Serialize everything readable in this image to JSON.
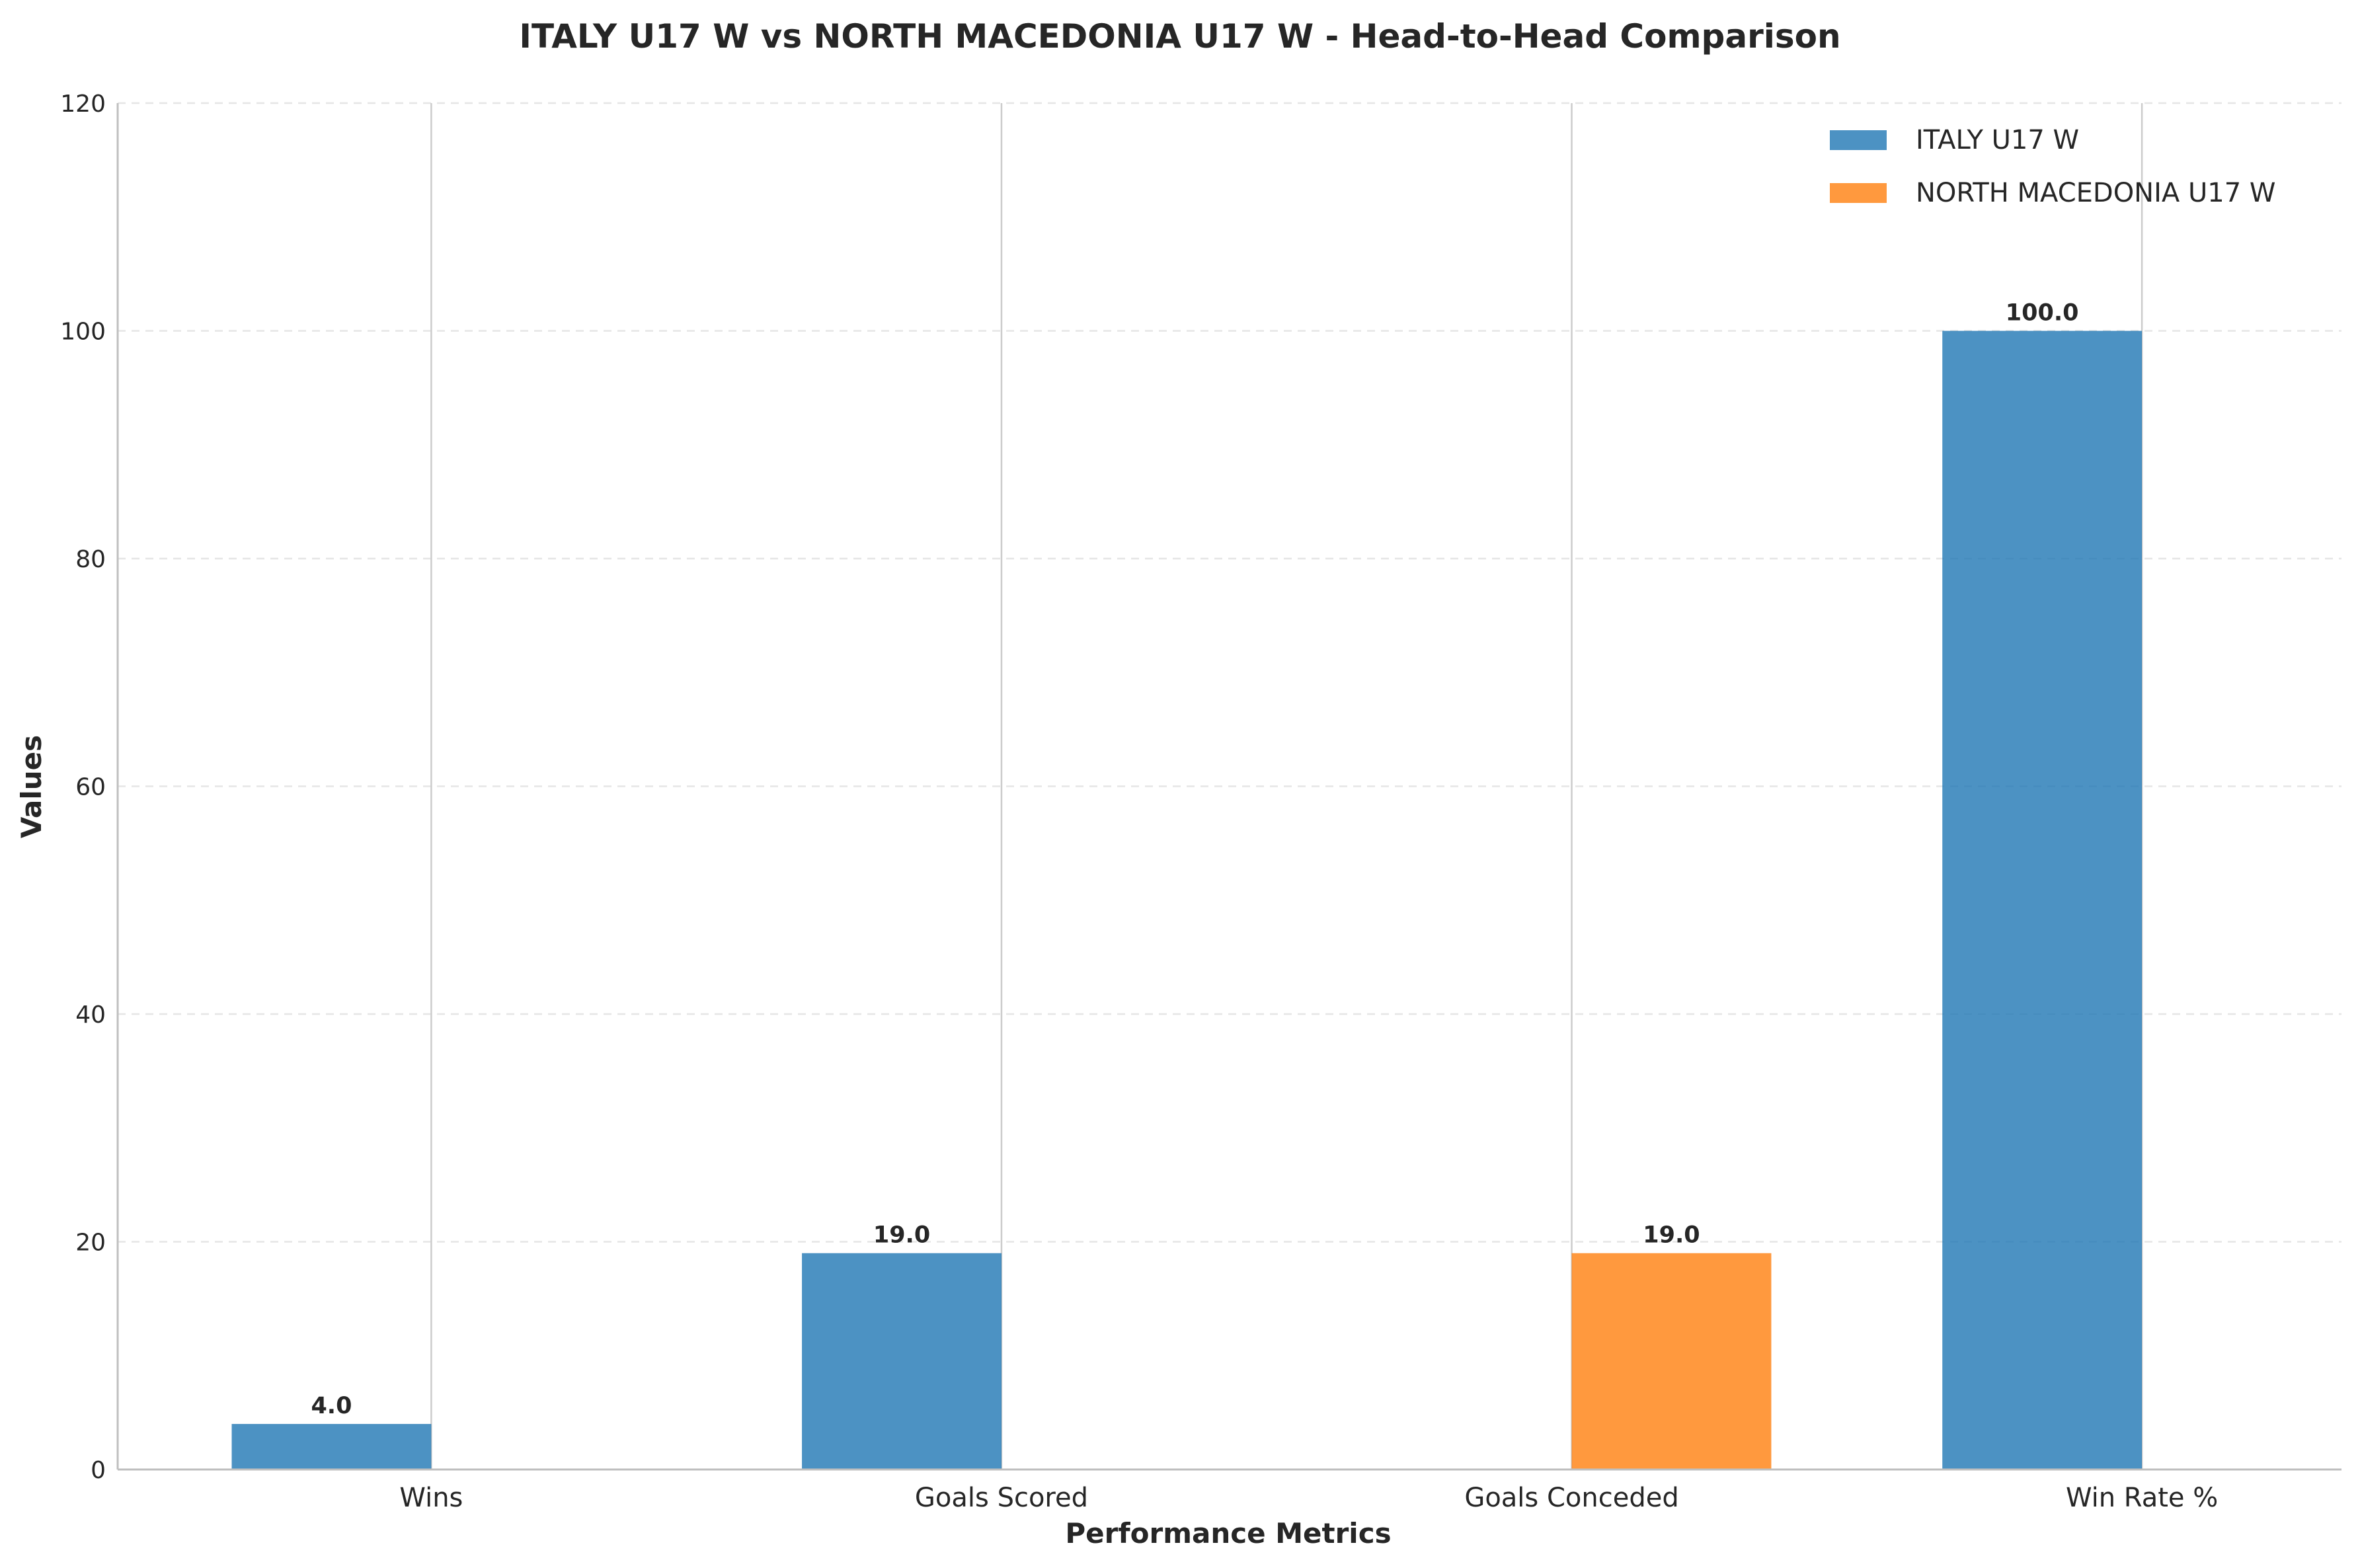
{
  "chart_data": {
    "type": "bar",
    "title": "ITALY U17 W vs NORTH MACEDONIA U17 W - Head-to-Head Comparison",
    "xlabel": "Performance Metrics",
    "ylabel": "Values",
    "categories": [
      "Wins",
      "Goals Scored",
      "Goals Conceded",
      "Win Rate %"
    ],
    "series": [
      {
        "name": "ITALY U17 W",
        "color": "#1f77b4",
        "values": [
          4.0,
          19.0,
          0,
          100.0
        ]
      },
      {
        "name": "NORTH MACEDONIA U17 W",
        "color": "#ff7f0e",
        "values": [
          0,
          0,
          19.0,
          0
        ]
      }
    ],
    "data_labels": [
      {
        "category": "Wins",
        "series": "ITALY U17 W",
        "value": 4.0,
        "text": "4.0"
      },
      {
        "category": "Goals Scored",
        "series": "ITALY U17 W",
        "value": 19.0,
        "text": "19.0"
      },
      {
        "category": "Goals Conceded",
        "series": "NORTH MACEDONIA U17 W",
        "value": 19.0,
        "text": "19.0"
      },
      {
        "category": "Win Rate %",
        "series": "ITALY U17 W",
        "value": 100.0,
        "text": "100.0"
      }
    ],
    "ylim": [
      0,
      120
    ],
    "yticks": [
      0,
      20,
      40,
      60,
      80,
      100,
      120
    ],
    "grid": true,
    "legend_position": "top-right"
  }
}
